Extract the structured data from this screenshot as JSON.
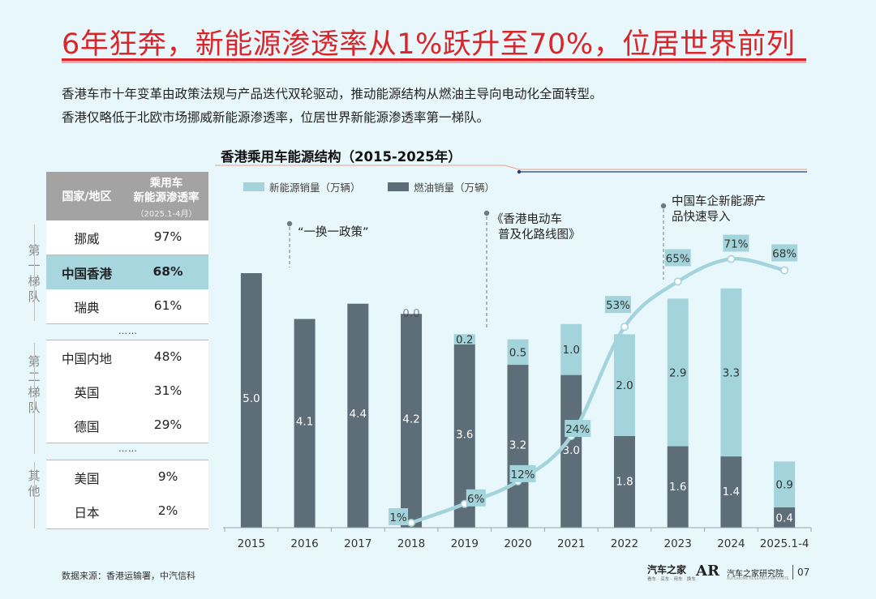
{
  "page": {
    "title": "6年狂奔，新能源渗透率从1%跃升至70%，位居世界前列",
    "subtitle_lines": [
      "香港车市十年变革由政策法规与产品迭代双轮驱动，推动能源结构从燃油主导向电动化全面转型。",
      "香港仅略低于北欧市场挪威新能源渗透率，位居世界新能源渗透率第一梯队。"
    ],
    "source": "数据来源：香港运输署，中汽信科",
    "brand": "汽车之家",
    "brand_sub": "看车 · 买车 · 用车 · 换车",
    "brand2_logo": "AR",
    "brand2": "汽车之家研究院",
    "brand2_sub": "AUTOHOME RESEARCH INSTITUTE",
    "page_number": "07"
  },
  "table": {
    "header_country": "国家/地区",
    "header_rate_line1": "乘用车",
    "header_rate_line2": "新能源渗透率",
    "header_period": "（2025.1-4月）",
    "ellipsis": "……",
    "tiers": [
      {
        "label": "第一梯队",
        "rows": [
          {
            "name": "挪威",
            "value": "97%",
            "highlight": false
          },
          {
            "name": "中国香港",
            "value": "68%",
            "highlight": true
          },
          {
            "name": "瑞典",
            "value": "61%",
            "highlight": false
          }
        ]
      },
      {
        "label": "第二梯队",
        "rows": [
          {
            "name": "中国内地",
            "value": "48%",
            "highlight": false
          },
          {
            "name": "英国",
            "value": "31%",
            "highlight": false
          },
          {
            "name": "德国",
            "value": "29%",
            "highlight": false
          }
        ]
      },
      {
        "label": "其他",
        "rows": [
          {
            "name": "美国",
            "value": "9%",
            "highlight": false
          },
          {
            "name": "日本",
            "value": "2%",
            "highlight": false
          }
        ]
      }
    ]
  },
  "chart_data": {
    "type": "bar",
    "stacked": true,
    "title": "香港乘用车能源结构（2015-2025年）",
    "categories": [
      "2015",
      "2016",
      "2017",
      "2018",
      "2019",
      "2020",
      "2021",
      "2022",
      "2023",
      "2024",
      "2025.1-4"
    ],
    "series": [
      {
        "name": "燃油销量（万辆）",
        "color": "#5e6e78",
        "values": [
          5.0,
          4.1,
          4.4,
          4.2,
          3.6,
          3.2,
          3.0,
          1.8,
          1.6,
          1.4,
          0.4
        ]
      },
      {
        "name": "新能源销量（万辆）",
        "color": "#a3d4dc",
        "values": [
          null,
          null,
          null,
          0.0,
          0.2,
          0.5,
          1.0,
          2.0,
          2.9,
          3.3,
          0.9
        ]
      }
    ],
    "line": {
      "name": "新能源渗透率",
      "color": "#a3d4dc",
      "start_index": 3,
      "values": [
        "1%",
        "6%",
        "12%",
        "24%",
        "53%",
        "65%",
        "71%",
        "68%"
      ]
    },
    "annotations": [
      {
        "category": "2016",
        "text": "“一换一政策”"
      },
      {
        "category": "2019",
        "text": "《香港电动车普及化路线图》"
      },
      {
        "category": "2023",
        "text": "中国车企新能源产品快速导入"
      }
    ],
    "legend_position": "top-left",
    "grid": false
  }
}
